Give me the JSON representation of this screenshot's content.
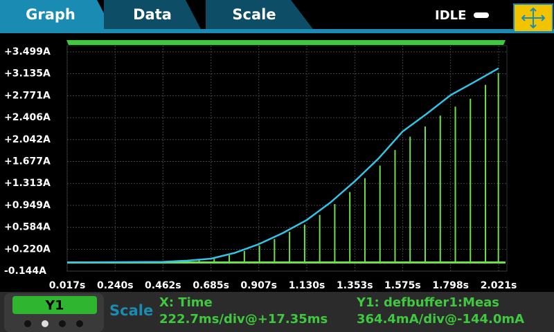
{
  "tabs": [
    "Graph",
    "Data",
    "Scale"
  ],
  "status": "IDLE",
  "footer": {
    "trace": "Y1",
    "scale": "Scale",
    "x_name": "X: Time",
    "x_scale": "222.7ms/div@+17.35ms",
    "y_name": "Y1: defbuffer1:Meas",
    "y_scale": "364.4mA/div@-144.0mA"
  },
  "chart_data": {
    "type": "line",
    "xlim": [
      0.017,
      2.021
    ],
    "ylim": [
      -0.144,
      3.499
    ],
    "xticks": [
      {
        "value": 0.017,
        "label": "0.017s"
      },
      {
        "value": 0.24,
        "label": "0.240s"
      },
      {
        "value": 0.462,
        "label": "0.462s"
      },
      {
        "value": 0.685,
        "label": "0.685s"
      },
      {
        "value": 0.907,
        "label": "0.907s"
      },
      {
        "value": 1.13,
        "label": "1.130s"
      },
      {
        "value": 1.353,
        "label": "1.353s"
      },
      {
        "value": 1.575,
        "label": "1.575s"
      },
      {
        "value": 1.798,
        "label": "1.798s"
      },
      {
        "value": 2.021,
        "label": "2.021s"
      }
    ],
    "yticks": [
      {
        "value": -0.144,
        "label": "-0.144A"
      },
      {
        "value": 0.22,
        "label": "+0.220A"
      },
      {
        "value": 0.584,
        "label": "+0.584A"
      },
      {
        "value": 0.949,
        "label": "+0.949A"
      },
      {
        "value": 1.313,
        "label": "+1.313A"
      },
      {
        "value": 1.677,
        "label": "+1.677A"
      },
      {
        "value": 2.042,
        "label": "+2.042A"
      },
      {
        "value": 2.406,
        "label": "+2.406A"
      },
      {
        "value": 2.771,
        "label": "+2.771A"
      },
      {
        "value": 3.135,
        "label": "+3.135A"
      },
      {
        "value": 3.499,
        "label": "+3.499A"
      }
    ],
    "grid": true,
    "series": [
      {
        "color": "#33c4e8",
        "style": "line",
        "x": [
          0.017,
          0.462,
          0.574,
          0.685,
          0.796,
          0.907,
          1.019,
          1.13,
          1.241,
          1.353,
          1.464,
          1.575,
          1.687,
          1.798,
          1.909,
          2.021
        ],
        "values": [
          0,
          0.01,
          0.03,
          0.063,
          0.16,
          0.304,
          0.49,
          0.706,
          1.0,
          1.349,
          1.73,
          2.176,
          2.47,
          2.78,
          3.0,
          3.227
        ]
      },
      {
        "color": "#6fe04a",
        "style": "pulse",
        "x": [
          0.63,
          0.7,
          0.77,
          0.84,
          0.91,
          0.98,
          1.05,
          1.12,
          1.19,
          1.26,
          1.33,
          1.4,
          1.47,
          1.54,
          1.61,
          1.68,
          1.75,
          1.82,
          1.89,
          1.96,
          2.02
        ],
        "values": [
          0.04,
          0.06,
          0.12,
          0.19,
          0.28,
          0.39,
          0.51,
          0.63,
          0.79,
          0.97,
          1.17,
          1.4,
          1.61,
          1.87,
          2.09,
          2.26,
          2.44,
          2.59,
          2.72,
          2.95,
          3.15
        ]
      }
    ]
  }
}
